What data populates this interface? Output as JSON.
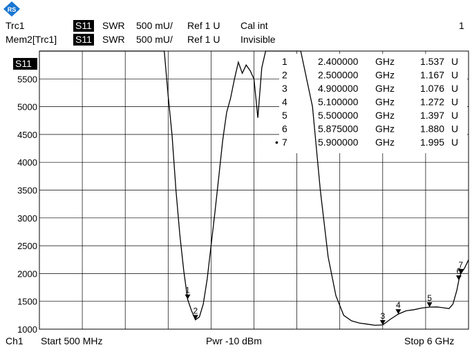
{
  "header": {
    "row1": {
      "trace": "Trc1",
      "param": "S11",
      "format": "SWR",
      "scale": "500 mU/",
      "ref": "Ref 1 U",
      "cal": "Cal int",
      "channel_num": "1"
    },
    "row2": {
      "trace": "Mem2[Trc1]",
      "param": "S11",
      "format": "SWR",
      "scale": "500 mU/",
      "ref": "Ref 1 U",
      "cal": "Invisible"
    }
  },
  "trace_label": "S11",
  "footer": {
    "channel": "Ch1",
    "start": "Start  500 MHz",
    "power": "Pwr  -10 dBm",
    "stop": "Stop  6 GHz"
  },
  "colors": {
    "logo": "#1976d2",
    "trace": "#000000",
    "grid": "#000000"
  },
  "chart_data": {
    "type": "line",
    "y_ticks": [
      "5500",
      "5000",
      "4500",
      "4000",
      "3500",
      "3000",
      "2500",
      "2000",
      "1500",
      "1000"
    ],
    "ylim": [
      1000,
      6000
    ],
    "xlim_ghz": [
      0.5,
      6
    ],
    "grid": true,
    "series": [
      {
        "x": [
          0.5,
          2.1,
          2.15,
          2.2,
          2.25,
          2.3,
          2.35,
          2.4,
          2.45,
          2.5,
          2.55,
          2.6,
          2.65,
          2.7,
          2.75,
          2.8,
          2.85,
          2.9,
          2.95,
          3.0,
          3.05,
          3.1,
          3.15,
          3.2,
          3.25,
          3.3,
          3.35,
          3.4,
          3.45,
          3.5,
          3.55,
          3.6,
          3.65,
          3.7,
          3.75,
          3.8,
          3.85,
          4.0,
          4.1,
          4.2,
          4.3,
          4.4,
          4.5,
          4.6,
          4.7,
          4.8,
          4.9,
          5.0,
          5.1,
          5.2,
          5.3,
          5.4,
          5.5,
          5.6,
          5.7,
          5.75,
          5.8,
          5.85,
          5.875,
          5.9,
          5.95,
          6.0
        ],
        "y": [
          6000,
          6000,
          5200,
          4500,
          3500,
          2700,
          2050,
          1537,
          1330,
          1167,
          1220,
          1450,
          1900,
          2500,
          3100,
          3750,
          4400,
          4900,
          5150,
          5500,
          5800,
          5600,
          5750,
          5650,
          5500,
          4800,
          5700,
          6000,
          6000,
          6000,
          6000,
          6000,
          6000,
          6000,
          6000,
          6000,
          6000,
          5000,
          3500,
          2300,
          1600,
          1250,
          1150,
          1110,
          1090,
          1070,
          1076,
          1180,
          1272,
          1330,
          1350,
          1380,
          1397,
          1400,
          1380,
          1370,
          1450,
          1700,
          1880,
          1995,
          2100,
          2250
        ]
      }
    ],
    "markers": [
      {
        "num": "1",
        "freq": "2.400000",
        "unit": "GHz",
        "value": "1.537",
        "vunit": "U",
        "x": 2.4,
        "y": 1537
      },
      {
        "num": "2",
        "freq": "2.500000",
        "unit": "GHz",
        "value": "1.167",
        "vunit": "U",
        "x": 2.5,
        "y": 1167
      },
      {
        "num": "3",
        "freq": "4.900000",
        "unit": "GHz",
        "value": "1.076",
        "vunit": "U",
        "x": 4.9,
        "y": 1076
      },
      {
        "num": "4",
        "freq": "5.100000",
        "unit": "GHz",
        "value": "1.272",
        "vunit": "U",
        "x": 5.1,
        "y": 1272
      },
      {
        "num": "5",
        "freq": "5.500000",
        "unit": "GHz",
        "value": "1.397",
        "vunit": "U",
        "x": 5.5,
        "y": 1397
      },
      {
        "num": "6",
        "freq": "5.875000",
        "unit": "GHz",
        "value": "1.880",
        "vunit": "U",
        "x": 5.875,
        "y": 1880
      },
      {
        "num": "7",
        "freq": "5.900000",
        "unit": "GHz",
        "value": "1.995",
        "vunit": "U",
        "x": 5.9,
        "y": 1995,
        "active": true
      }
    ]
  }
}
